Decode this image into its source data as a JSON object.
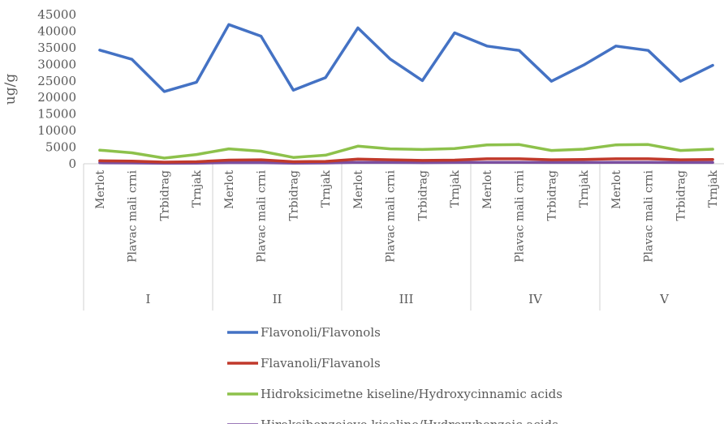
{
  "chart_data": {
    "type": "line",
    "ylabel": "ug/g",
    "ylim": [
      0,
      45000
    ],
    "yticks": [
      0,
      5000,
      10000,
      15000,
      20000,
      25000,
      30000,
      35000,
      40000,
      45000
    ],
    "ytick_labels": [
      "0",
      "5000",
      "10000",
      "15000",
      "20000",
      "25000",
      "30000",
      "35000",
      "40000",
      "45000"
    ],
    "grid": false,
    "legend_position": "bottom",
    "groups": [
      {
        "label": "I",
        "categories": [
          "Merlot",
          "Plavac mali crni",
          "Trbidrag",
          "Trnjak"
        ]
      },
      {
        "label": "II",
        "categories": [
          "Merlot",
          "Plavac mali crni",
          "Trbidrag",
          "Trnjak"
        ]
      },
      {
        "label": "III",
        "categories": [
          "Merlot",
          "Plavac mali crni",
          "Trbidrag",
          "Trnjak"
        ]
      },
      {
        "label": "IV",
        "categories": [
          "Merlot",
          "Plavac mali crni",
          "Trbidrag",
          "Trnjak"
        ]
      },
      {
        "label": "V",
        "categories": [
          "Merlot",
          "Plavac mali crni",
          "Trbidrag",
          "Trnjak"
        ]
      }
    ],
    "series": [
      {
        "name": "Flavonoli/Flavonols",
        "color": "#4472C4",
        "values": [
          34300,
          31500,
          21800,
          24600,
          42000,
          38500,
          22200,
          26000,
          41000,
          31600,
          25100,
          39500,
          35500,
          34200,
          24900,
          29800,
          35500,
          34200,
          24900,
          29700
        ]
      },
      {
        "name": "Flavanoli/Flavanols",
        "color": "#C0392B",
        "values": [
          900,
          800,
          500,
          600,
          1100,
          1200,
          600,
          700,
          1400,
          1200,
          1000,
          1100,
          1500,
          1500,
          1200,
          1300,
          1500,
          1500,
          1200,
          1300
        ]
      },
      {
        "name": "Hidroksicimetne kiseline/Hydroxycinnamic acids",
        "color": "#8DC14B",
        "values": [
          4100,
          3300,
          1700,
          2800,
          4500,
          3800,
          1900,
          2600,
          5300,
          4500,
          4300,
          4600,
          5700,
          5800,
          4000,
          4400,
          5700,
          5800,
          4000,
          4400
        ]
      },
      {
        "name": "Hiroksibenzojeve kiseline/Hydroxybenzoic acids",
        "color": "#7B4FA0",
        "values": [
          300,
          250,
          150,
          200,
          350,
          350,
          200,
          250,
          450,
          400,
          350,
          400,
          450,
          450,
          400,
          400,
          450,
          450,
          400,
          400
        ]
      }
    ]
  }
}
